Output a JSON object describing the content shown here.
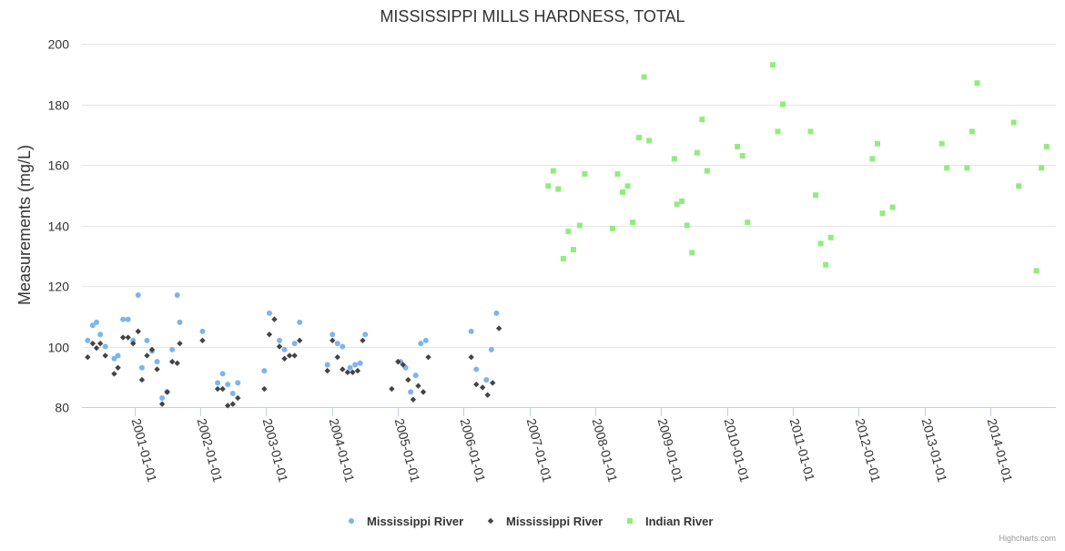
{
  "chart_data": {
    "type": "scatter",
    "title": "MISSISSIPPI MILLS HARDNESS, TOTAL",
    "ylabel": "Measurements (mg/L)",
    "xlabel": "",
    "ylim": [
      80,
      200
    ],
    "yticks": [
      80,
      100,
      120,
      140,
      160,
      180,
      200
    ],
    "xlim": [
      "2000-03-15",
      "2014-12-31"
    ],
    "xticks": [
      "2001-01-01",
      "2002-01-01",
      "2003-01-01",
      "2004-01-01",
      "2005-01-01",
      "2006-01-01",
      "2007-01-01",
      "2008-01-01",
      "2009-01-01",
      "2010-01-01",
      "2011-01-01",
      "2012-01-01",
      "2013-01-01",
      "2014-01-01"
    ],
    "grid": true,
    "legend_position": "bottom-center",
    "series": [
      {
        "name": "Mississippi River",
        "marker": "circle",
        "color": "#7cb5ec",
        "points": [
          [
            "2000-04-16",
            102
          ],
          [
            "2000-05-14",
            107
          ],
          [
            "2000-06-04",
            108
          ],
          [
            "2000-06-25",
            104
          ],
          [
            "2000-07-23",
            100
          ],
          [
            "2000-09-10",
            96
          ],
          [
            "2000-10-01",
            97
          ],
          [
            "2000-10-29",
            109
          ],
          [
            "2000-11-26",
            109
          ],
          [
            "2000-12-24",
            102
          ],
          [
            "2001-01-21",
            117
          ],
          [
            "2001-02-11",
            93
          ],
          [
            "2001-03-11",
            102
          ],
          [
            "2001-04-08",
            98.5
          ],
          [
            "2001-05-06",
            95
          ],
          [
            "2001-06-03",
            83
          ],
          [
            "2001-07-01",
            85
          ],
          [
            "2001-07-29",
            99
          ],
          [
            "2001-08-26",
            117
          ],
          [
            "2001-09-09",
            108
          ],
          [
            "2002-01-13",
            105
          ],
          [
            "2002-04-07",
            88
          ],
          [
            "2002-05-05",
            91
          ],
          [
            "2002-06-02",
            87.5
          ],
          [
            "2002-06-30",
            84.5
          ],
          [
            "2002-07-28",
            88
          ],
          [
            "2002-12-22",
            92
          ],
          [
            "2003-01-19",
            111
          ],
          [
            "2003-03-16",
            102
          ],
          [
            "2003-04-13",
            99
          ],
          [
            "2003-06-08",
            101
          ],
          [
            "2003-07-06",
            108
          ],
          [
            "2003-12-07",
            94
          ],
          [
            "2004-01-04",
            104
          ],
          [
            "2004-02-01",
            101
          ],
          [
            "2004-02-29",
            100
          ],
          [
            "2004-04-11",
            93
          ],
          [
            "2004-05-09",
            94
          ],
          [
            "2004-06-06",
            94.5
          ],
          [
            "2004-07-04",
            104
          ],
          [
            "2005-01-16",
            95
          ],
          [
            "2005-02-13",
            93
          ],
          [
            "2005-03-13",
            85
          ],
          [
            "2005-04-10",
            90.5
          ],
          [
            "2005-05-08",
            101
          ],
          [
            "2005-06-05",
            102
          ],
          [
            "2006-02-12",
            105
          ],
          [
            "2006-03-12",
            92.5
          ],
          [
            "2006-05-07",
            89
          ],
          [
            "2006-06-04",
            99
          ],
          [
            "2006-07-02",
            111
          ]
        ]
      },
      {
        "name": "Mississippi River",
        "marker": "diamond",
        "color": "#434348",
        "points": [
          [
            "2000-04-16",
            96.5
          ],
          [
            "2000-05-14",
            101
          ],
          [
            "2000-06-04",
            99.5
          ],
          [
            "2000-06-25",
            101
          ],
          [
            "2000-07-23",
            97
          ],
          [
            "2000-09-10",
            91
          ],
          [
            "2000-10-01",
            93
          ],
          [
            "2000-10-29",
            103
          ],
          [
            "2000-11-26",
            103
          ],
          [
            "2000-12-24",
            101
          ],
          [
            "2001-01-21",
            105
          ],
          [
            "2001-02-11",
            89
          ],
          [
            "2001-03-11",
            97
          ],
          [
            "2001-04-08",
            99
          ],
          [
            "2001-05-06",
            92.5
          ],
          [
            "2001-06-03",
            81
          ],
          [
            "2001-07-01",
            85
          ],
          [
            "2001-07-29",
            95
          ],
          [
            "2001-08-26",
            94.5
          ],
          [
            "2001-09-09",
            101
          ],
          [
            "2002-01-13",
            102
          ],
          [
            "2002-04-07",
            86
          ],
          [
            "2002-05-05",
            86
          ],
          [
            "2002-06-02",
            80.5
          ],
          [
            "2002-06-30",
            81
          ],
          [
            "2002-07-28",
            83
          ],
          [
            "2002-12-22",
            86
          ],
          [
            "2003-01-19",
            104
          ],
          [
            "2003-02-16",
            109
          ],
          [
            "2003-03-16",
            100
          ],
          [
            "2003-04-13",
            96
          ],
          [
            "2003-05-11",
            97
          ],
          [
            "2003-06-08",
            97
          ],
          [
            "2003-07-06",
            102
          ],
          [
            "2003-12-07",
            92
          ],
          [
            "2004-01-04",
            102
          ],
          [
            "2004-02-01",
            96.5
          ],
          [
            "2004-02-29",
            92.5
          ],
          [
            "2004-03-28",
            91.5
          ],
          [
            "2004-04-25",
            91.5
          ],
          [
            "2004-05-23",
            92
          ],
          [
            "2004-06-20",
            102
          ],
          [
            "2004-11-28",
            86
          ],
          [
            "2005-01-02",
            95
          ],
          [
            "2005-01-30",
            94
          ],
          [
            "2005-02-27",
            89
          ],
          [
            "2005-03-27",
            82.5
          ],
          [
            "2005-04-24",
            87
          ],
          [
            "2005-05-22",
            85
          ],
          [
            "2005-06-19",
            96.5
          ],
          [
            "2006-02-12",
            96.5
          ],
          [
            "2006-03-12",
            87.5
          ],
          [
            "2006-04-16",
            86.5
          ],
          [
            "2006-05-14",
            84
          ],
          [
            "2006-06-11",
            88
          ],
          [
            "2006-07-16",
            106
          ]
        ]
      },
      {
        "name": "Indian River",
        "marker": "square",
        "color": "#90ed7d",
        "points": [
          [
            "2007-04-15",
            153
          ],
          [
            "2007-05-13",
            158
          ],
          [
            "2007-06-10",
            152
          ],
          [
            "2007-07-08",
            129
          ],
          [
            "2007-08-05",
            138
          ],
          [
            "2007-09-02",
            132
          ],
          [
            "2007-10-07",
            140
          ],
          [
            "2007-11-04",
            157
          ],
          [
            "2008-04-06",
            139
          ],
          [
            "2008-05-04",
            157
          ],
          [
            "2008-06-01",
            151
          ],
          [
            "2008-06-29",
            153
          ],
          [
            "2008-07-27",
            141
          ],
          [
            "2008-08-31",
            169
          ],
          [
            "2008-09-28",
            189
          ],
          [
            "2008-10-26",
            168
          ],
          [
            "2009-03-15",
            162
          ],
          [
            "2009-03-29",
            147
          ],
          [
            "2009-04-26",
            148
          ],
          [
            "2009-05-24",
            140
          ],
          [
            "2009-06-21",
            131
          ],
          [
            "2009-07-19",
            164
          ],
          [
            "2009-08-16",
            175
          ],
          [
            "2009-09-13",
            158
          ],
          [
            "2010-02-28",
            166
          ],
          [
            "2010-03-28",
            163
          ],
          [
            "2010-04-25",
            141
          ],
          [
            "2010-09-12",
            193
          ],
          [
            "2010-10-10",
            171
          ],
          [
            "2010-11-07",
            180
          ],
          [
            "2011-04-10",
            171
          ],
          [
            "2011-05-08",
            150
          ],
          [
            "2011-06-05",
            134
          ],
          [
            "2011-07-03",
            127
          ],
          [
            "2011-07-31",
            136
          ],
          [
            "2012-03-18",
            162
          ],
          [
            "2012-04-15",
            167
          ],
          [
            "2012-05-13",
            144
          ],
          [
            "2012-07-08",
            146
          ],
          [
            "2013-04-07",
            167
          ],
          [
            "2013-05-05",
            159
          ],
          [
            "2013-08-25",
            159
          ],
          [
            "2013-09-22",
            171
          ],
          [
            "2013-10-20",
            187
          ],
          [
            "2014-05-11",
            174
          ],
          [
            "2014-06-08",
            153
          ],
          [
            "2014-09-14",
            125
          ],
          [
            "2014-10-12",
            159
          ],
          [
            "2014-11-09",
            166
          ]
        ]
      }
    ]
  },
  "credit": "Highcharts.com"
}
